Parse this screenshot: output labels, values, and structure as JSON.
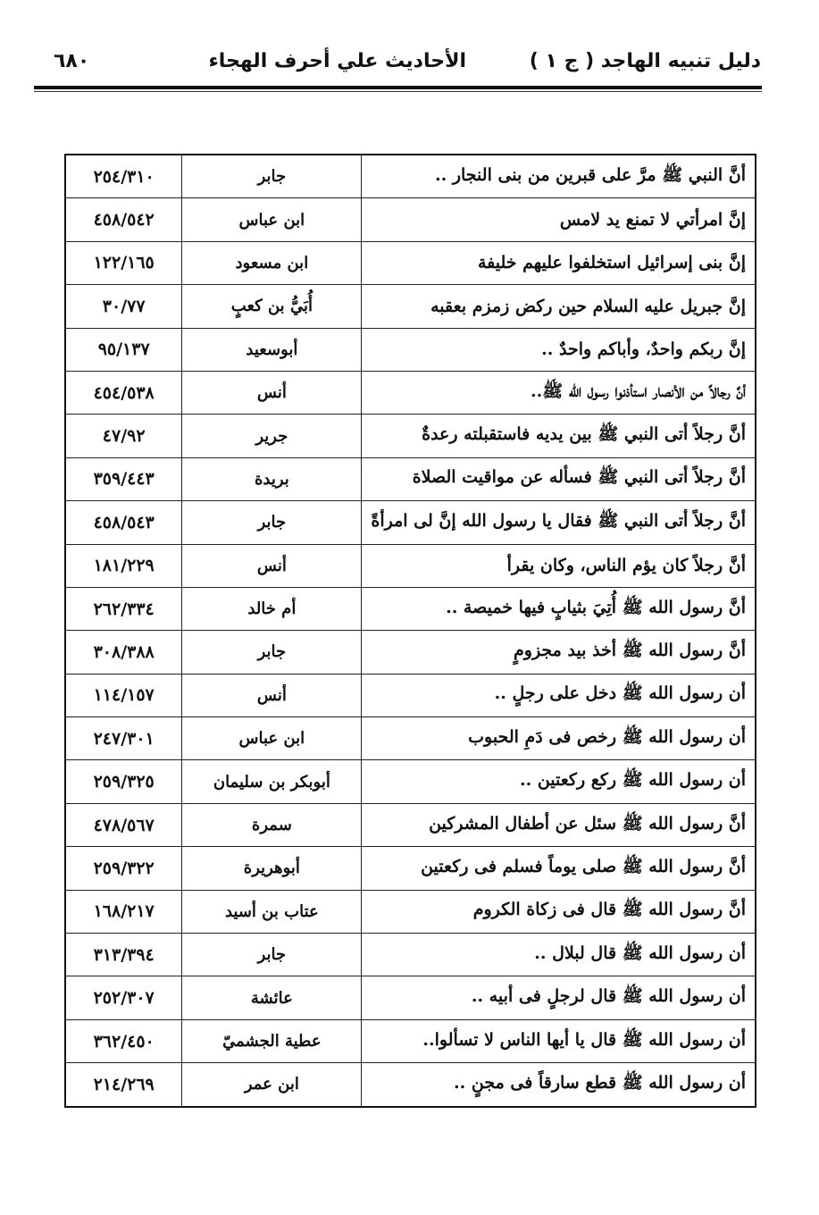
{
  "header": {
    "book_title": "دليل تنبيه الهاجد ( ج ١ )",
    "section_title": "الأحاديث علي أحرف الهجاء",
    "page_number": "٦٨٠"
  },
  "rows": [
    {
      "text": "أنَّ النبي ﷺ مرَّ على قبرين من بنى النجار ..",
      "narrator": "جابر",
      "ref": "٢٥٤/٣١٠"
    },
    {
      "text": "إنَّ امرأتي لا تمنع يد لامس",
      "narrator": "ابن عباس",
      "ref": "٤٥٨/٥٤٢"
    },
    {
      "text": "إنَّ بنى إسرائيل استخلفوا عليهم خليفة",
      "narrator": "ابن مسعود",
      "ref": "١٢٢/١٦٥"
    },
    {
      "text": "إنَّ جبريل عليه السلام حين ركض زمزم بعقبه",
      "narrator": "أُبَيُّ بن كعبٍ",
      "ref": "٣٠/٧٧"
    },
    {
      "text": "إنَّ ربكم واحدٌ، وأباكم واحدٌ ..",
      "narrator": "أبوسعيد",
      "ref": "٩٥/١٣٧"
    },
    {
      "text": "أنَّ رجالاً من الأنصار استأذنوا رسول الله ﷺ..",
      "narrator": "أنس",
      "ref": "٤٥٤/٥٣٨"
    },
    {
      "text": "أنَّ رجلاً أتى النبي ﷺ بين يديه فاستقبلته رعدةٌ",
      "narrator": "جرير",
      "ref": "٤٧/٩٢"
    },
    {
      "text": "أنَّ رجلاً أتى النبي ﷺ فسأله عن مواقيت الصلاة",
      "narrator": "بريدة",
      "ref": "٣٥٩/٤٤٣"
    },
    {
      "text": "أنَّ رجلاً أتى النبي ﷺ فقال يا رسول الله إنَّ لى امرأةً",
      "narrator": "جابر",
      "ref": "٤٥٨/٥٤٣"
    },
    {
      "text": "أنَّ رجلاً كان يؤم الناس، وكان يقرأ",
      "narrator": "أنس",
      "ref": "١٨١/٢٢٩"
    },
    {
      "text": "أنَّ رسول الله ﷺ أُتِيَ بثيابٍ فيها خميصة ..",
      "narrator": "أم خالد",
      "ref": "٢٦٢/٣٣٤"
    },
    {
      "text": "أنَّ رسول الله ﷺ أخذ بيد مجزومٍ",
      "narrator": "جابر",
      "ref": "٣٠٨/٣٨٨"
    },
    {
      "text": "أن رسول الله ﷺ دخل على رجلٍ ..",
      "narrator": "أنس",
      "ref": "١١٤/١٥٧"
    },
    {
      "text": "أن رسول الله ﷺ رخص فى دَمِ الحبوب",
      "narrator": "ابن عباس",
      "ref": "٢٤٧/٣٠١"
    },
    {
      "text": "أن رسول الله ﷺ ركع ركعتين ..",
      "narrator": "أبوبكر بن سليمان",
      "ref": "٢٥٩/٣٢٥"
    },
    {
      "text": "أنَّ رسول الله ﷺ سئل عن أطفال المشركين",
      "narrator": "سمرة",
      "ref": "٤٧٨/٥٦٧"
    },
    {
      "text": "أنَّ رسول الله ﷺ صلى يوماً فسلم فى ركعتين",
      "narrator": "أبوهريرة",
      "ref": "٢٥٩/٣٢٢"
    },
    {
      "text": "أنَّ رسول الله ﷺ قال فى زكاة الكروم",
      "narrator": "عتاب بن أسيد",
      "ref": "١٦٨/٢١٧"
    },
    {
      "text": "أن رسول الله ﷺ قال لبلال ..",
      "narrator": "جابر",
      "ref": "٣١٣/٣٩٤"
    },
    {
      "text": "أن رسول الله ﷺ قال لرجلٍ فى أبيه ..",
      "narrator": "عائشة",
      "ref": "٢٥٢/٣٠٧"
    },
    {
      "text": "أن رسول الله ﷺ قال يا أيها الناس لا تسألوا..",
      "narrator": "عطية الجشميّ",
      "ref": "٣٦٢/٤٥٠"
    },
    {
      "text": "أن رسول الله ﷺ قطع سارقاً فى مجنٍ ..",
      "narrator": "ابن عمر",
      "ref": "٢١٤/٢٦٩"
    }
  ]
}
